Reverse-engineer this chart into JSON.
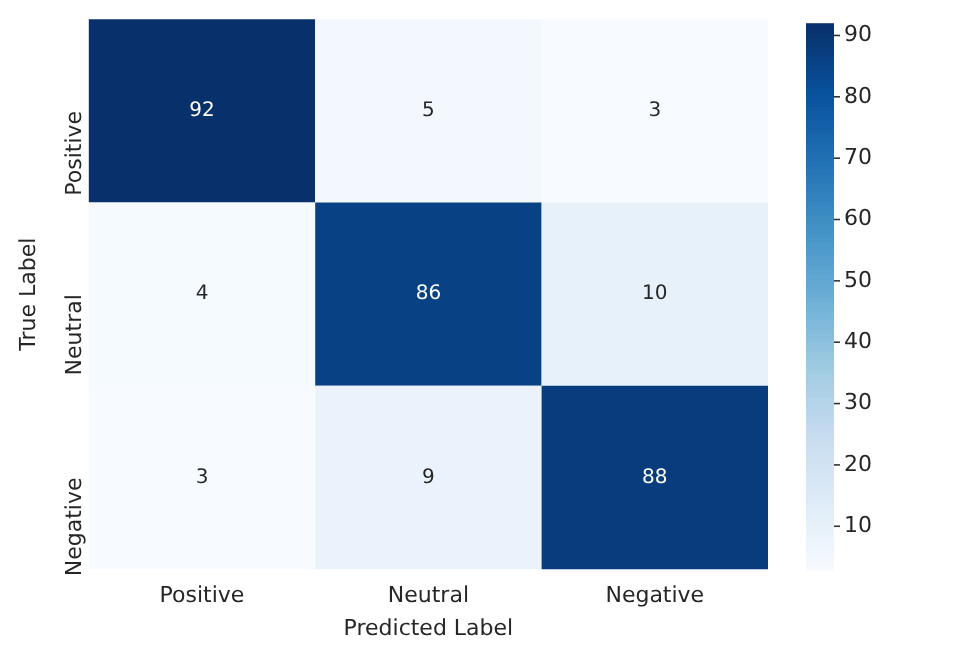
{
  "chart_data": {
    "type": "heatmap",
    "xlabel": "Predicted Label",
    "ylabel": "True Label",
    "categories": [
      "Positive",
      "Neutral",
      "Negative"
    ],
    "y_categories": [
      "Positive",
      "Neutral",
      "Negative"
    ],
    "cells": [
      [
        92,
        5,
        3
      ],
      [
        4,
        86,
        10
      ],
      [
        3,
        9,
        88
      ]
    ],
    "clim": [
      3,
      92
    ],
    "cticks": [
      10,
      20,
      30,
      40,
      50,
      60,
      70,
      80,
      90
    ],
    "data_labels": true
  }
}
